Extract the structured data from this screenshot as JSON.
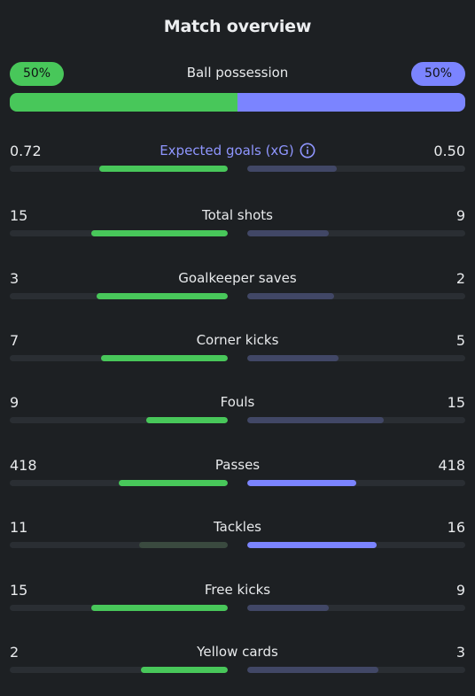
{
  "title": "Match overview",
  "possession": {
    "label": "Ball possession",
    "home": "50%",
    "away": "50%",
    "home_fraction": 0.5
  },
  "colors": {
    "home_strong": "#48c75a",
    "home_faded": "#3a4a3f",
    "away_strong": "#7b84ff",
    "away_faded": "#414766",
    "track": "#2a2e33"
  },
  "stats": [
    {
      "label": "Expected goals (xG)",
      "home": "0.72",
      "away": "0.50",
      "home_fraction": 0.59,
      "away_fraction": 0.41,
      "home_style": "strong",
      "away_style": "faded",
      "accent": true,
      "info_icon": "info-icon"
    },
    {
      "label": "Total shots",
      "home": "15",
      "away": "9",
      "home_fraction": 0.625,
      "away_fraction": 0.375,
      "home_style": "strong",
      "away_style": "faded"
    },
    {
      "label": "Goalkeeper saves",
      "home": "3",
      "away": "2",
      "home_fraction": 0.6,
      "away_fraction": 0.4,
      "home_style": "strong",
      "away_style": "faded"
    },
    {
      "label": "Corner kicks",
      "home": "7",
      "away": "5",
      "home_fraction": 0.583,
      "away_fraction": 0.417,
      "home_style": "strong",
      "away_style": "faded"
    },
    {
      "label": "Fouls",
      "home": "9",
      "away": "15",
      "home_fraction": 0.375,
      "away_fraction": 0.625,
      "home_style": "strong",
      "away_style": "faded"
    },
    {
      "label": "Passes",
      "home": "418",
      "away": "418",
      "home_fraction": 0.5,
      "away_fraction": 0.5,
      "home_style": "strong",
      "away_style": "strong"
    },
    {
      "label": "Tackles",
      "home": "11",
      "away": "16",
      "home_fraction": 0.407,
      "away_fraction": 0.593,
      "home_style": "faded",
      "away_style": "strong"
    },
    {
      "label": "Free kicks",
      "home": "15",
      "away": "9",
      "home_fraction": 0.625,
      "away_fraction": 0.375,
      "home_style": "strong",
      "away_style": "faded"
    },
    {
      "label": "Yellow cards",
      "home": "2",
      "away": "3",
      "home_fraction": 0.4,
      "away_fraction": 0.6,
      "home_style": "strong",
      "away_style": "faded"
    }
  ]
}
